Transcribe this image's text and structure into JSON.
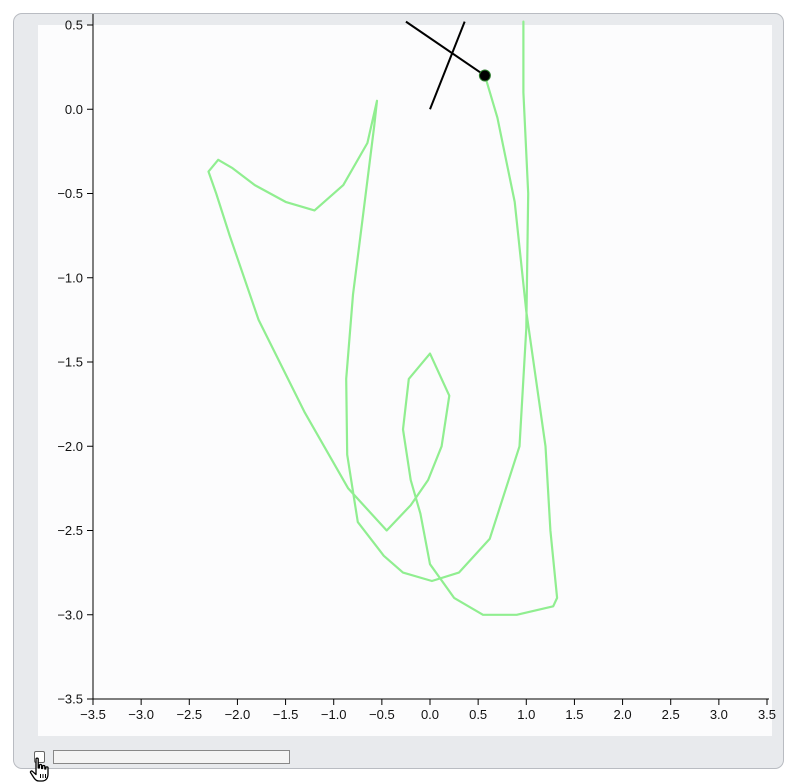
{
  "chart_data": {
    "type": "line",
    "title": "",
    "xlabel": "",
    "ylabel": "",
    "xlim": [
      -3.5,
      3.5
    ],
    "ylim": [
      -3.5,
      0.5
    ],
    "x_ticks": [
      "−3.5",
      "−3.0",
      "−2.5",
      "−2.0",
      "−1.5",
      "−1.0",
      "−0.5",
      "0.0",
      "0.5",
      "1.0",
      "1.5",
      "2.0",
      "2.5",
      "3.0",
      "3.5"
    ],
    "y_ticks": [
      "0.5",
      "0.0",
      "−0.5",
      "−1.0",
      "−1.5",
      "−2.0",
      "−2.5",
      "−3.0",
      "−3.5"
    ],
    "x_tick_values": [
      -3.5,
      -3.0,
      -2.5,
      -2.0,
      -1.5,
      -1.0,
      -0.5,
      0.0,
      0.5,
      1.0,
      1.5,
      2.0,
      2.5,
      3.0,
      3.5
    ],
    "y_tick_values": [
      0.5,
      0.0,
      -0.5,
      -1.0,
      -1.5,
      -2.0,
      -2.5,
      -3.0,
      -3.5
    ],
    "grid": false,
    "series": [
      {
        "kind": "trajectory",
        "color": "#90ee90",
        "x": [
          0.57,
          0.7,
          0.88,
          1.0,
          1.1,
          1.2,
          1.25,
          1.32,
          1.28,
          0.9,
          0.55,
          0.25,
          0.0,
          -0.1,
          -0.2,
          -0.28,
          -0.22,
          0.0,
          0.2,
          0.12,
          -0.02,
          -0.2,
          -0.45,
          -0.85,
          -1.3,
          -1.78,
          -2.08,
          -2.22,
          -2.3,
          -2.2,
          -2.05,
          -1.82,
          -1.5,
          -1.2,
          -0.9,
          -0.65,
          -0.55,
          -0.58,
          -0.7,
          -0.8,
          -0.87,
          -0.86,
          -0.75,
          -0.48,
          -0.28,
          0.02,
          0.3,
          0.62,
          0.93,
          1.0,
          1.02,
          0.97,
          0.97
        ],
        "y": [
          0.2,
          -0.05,
          -0.55,
          -1.2,
          -1.6,
          -2.0,
          -2.5,
          -2.9,
          -2.95,
          -3.0,
          -3.0,
          -2.9,
          -2.7,
          -2.4,
          -2.2,
          -1.9,
          -1.6,
          -1.45,
          -1.7,
          -2.0,
          -2.2,
          -2.35,
          -2.5,
          -2.25,
          -1.8,
          -1.25,
          -0.75,
          -0.5,
          -0.37,
          -0.3,
          -0.35,
          -0.45,
          -0.55,
          -0.6,
          -0.45,
          -0.2,
          0.05,
          -0.1,
          -0.65,
          -1.1,
          -1.6,
          -2.05,
          -2.45,
          -2.65,
          -2.75,
          -2.8,
          -2.75,
          -2.55,
          -2.0,
          -1.3,
          -0.5,
          0.1,
          0.52
        ]
      },
      {
        "kind": "pendulum-rods",
        "color": "#000000",
        "segments": [
          {
            "from": [
              0.0,
              0.0
            ],
            "to": [
              0.36,
              0.52
            ]
          },
          {
            "from": [
              -0.25,
              0.52
            ],
            "to": [
              0.57,
              0.2
            ]
          }
        ],
        "bob": [
          0.57,
          0.2
        ]
      }
    ]
  },
  "controls": {
    "checkbox_checked": false,
    "slider_value": 0
  },
  "colors": {
    "trail": "#90ee90",
    "rod": "#000000",
    "plot_background": "#fcfcfd",
    "frame": "#e8eaed"
  }
}
